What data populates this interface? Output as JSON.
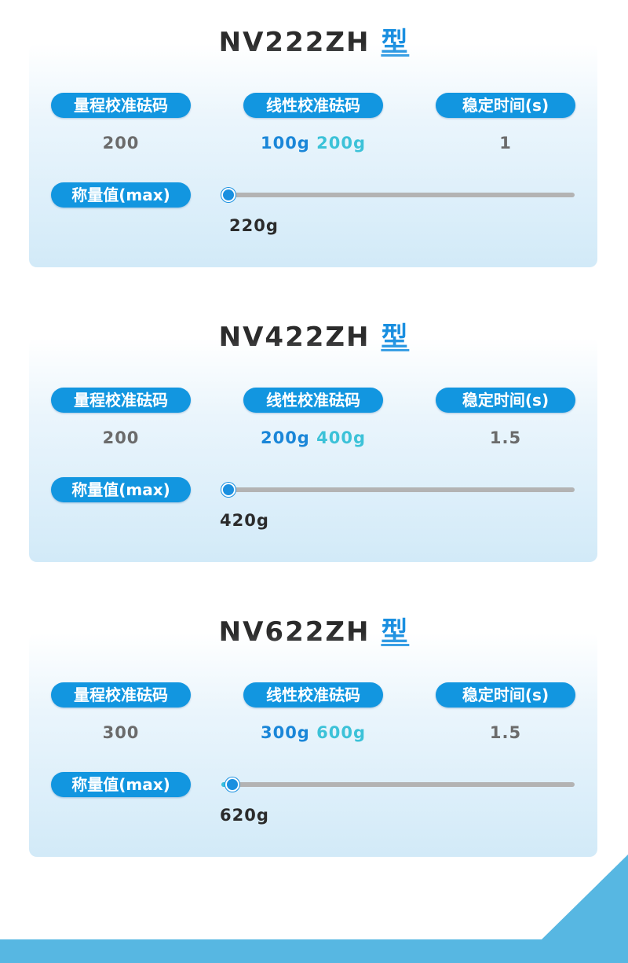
{
  "labels": {
    "range": "量程校准砝码",
    "linear": "线性校准砝码",
    "stable": "稳定时间(s)",
    "max": "称量值(max)"
  },
  "colors": {
    "accent": "#1296e0",
    "secondary": "#3cc2d8",
    "band": "#57b7e2"
  },
  "models": [
    {
      "name": "NV222ZH",
      "suffix": "型",
      "range": "200",
      "linear1": "100g",
      "linear2": "200g",
      "stable": "1",
      "max": "220g",
      "slider_fraction": 0.02
    },
    {
      "name": "NV422ZH",
      "suffix": "型",
      "range": "200",
      "linear1": "200g",
      "linear2": "400g",
      "stable": "1.5",
      "max": "420g",
      "slider_fraction": 0.02
    },
    {
      "name": "NV622ZH",
      "suffix": "型",
      "range": "300",
      "linear1": "300g",
      "linear2": "600g",
      "stable": "1.5",
      "max": "620g",
      "slider_fraction": 0.03
    }
  ]
}
